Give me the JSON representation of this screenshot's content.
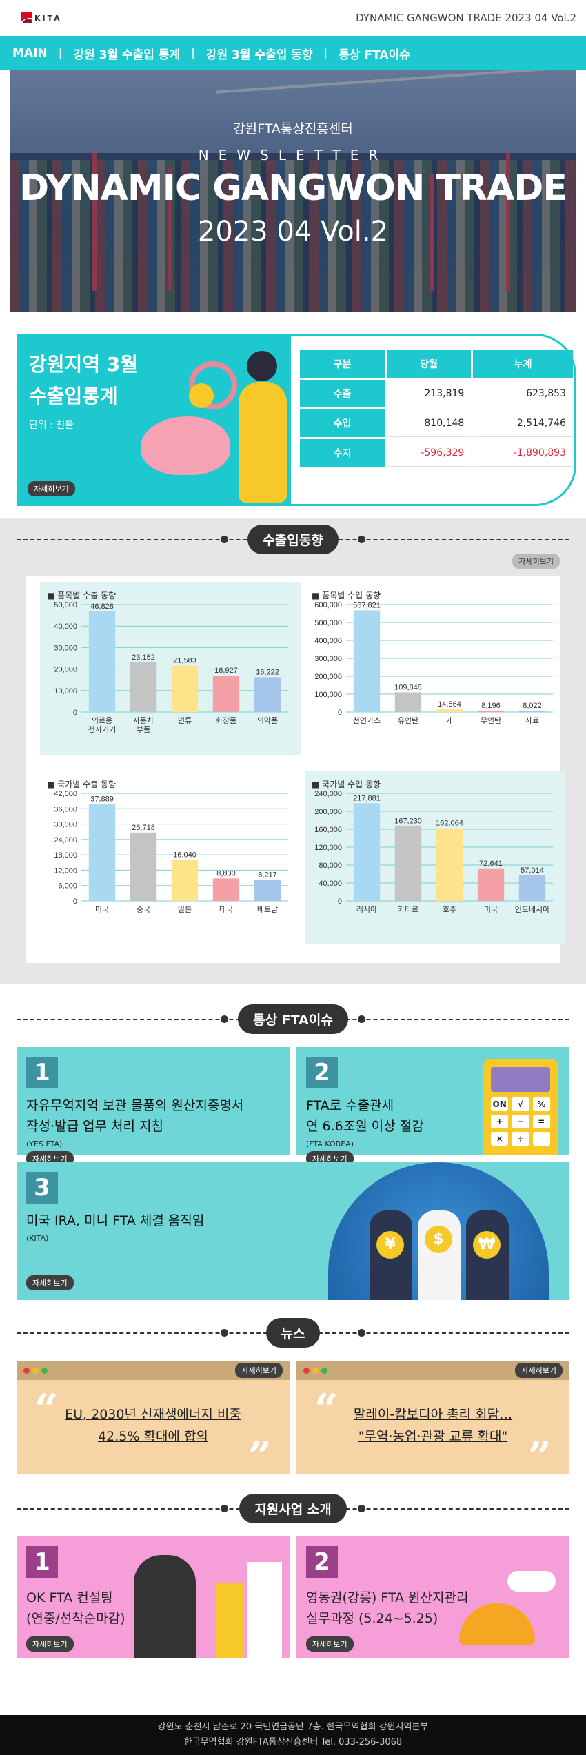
{
  "header": {
    "logo_text": "KITA",
    "title": "DYNAMIC GANGWON TRADE 2023 04 Vol.2"
  },
  "nav": {
    "items": [
      "MAIN",
      "강원 3월 수출입 통계",
      "강원 3월 수출입 동향",
      "통상 FTA이슈"
    ]
  },
  "hero": {
    "org": "강원FTA통상진흥센터",
    "newsletter": "NEWSLETTER",
    "title": "DYNAMIC GANGWON TRADE",
    "vol": "2023 04 Vol.2"
  },
  "stats": {
    "title_line1": "강원지역 3월",
    "title_line2": "수출입통계",
    "unit": "단위 : 천불",
    "more": "자세히보기",
    "headers": [
      "구분",
      "당월",
      "누계"
    ],
    "rows": [
      {
        "label": "수출",
        "month": "213,819",
        "total": "623,853"
      },
      {
        "label": "수입",
        "month": "810,148",
        "total": "2,514,746"
      },
      {
        "label": "수지",
        "month": "-596,329",
        "total": "-1,890,893"
      }
    ]
  },
  "sections": {
    "trend": "수출입동향",
    "fta": "통상 FTA이슈",
    "news": "뉴스",
    "support": "지원사업 소개",
    "more": "자세히보기"
  },
  "chart_data": [
    {
      "type": "bar",
      "title": "■ 품목별 수출 동향",
      "categories": [
        "의료용\n전자기기",
        "자동차\n부품",
        "면류",
        "화장품",
        "의약품"
      ],
      "values": [
        46828,
        23152,
        21583,
        16927,
        16222
      ],
      "labels": [
        "46,828",
        "23,152",
        "21,583",
        "16,927",
        "16,222"
      ],
      "ylim": [
        0,
        50000
      ],
      "ticks": [
        "0",
        "10,000",
        "20,000",
        "30,000",
        "40,000",
        "50,000"
      ],
      "colors": [
        "#a9d9f2",
        "#c4c4c4",
        "#fde38a",
        "#f4a0a6",
        "#a6c5ea"
      ]
    },
    {
      "type": "bar",
      "title": "■ 품목별 수입 동향",
      "categories": [
        "천연가스",
        "유연탄",
        "게",
        "무연탄",
        "사료"
      ],
      "values": [
        567821,
        109848,
        14564,
        8196,
        8022
      ],
      "labels": [
        "567,821",
        "109,848",
        "14,564",
        "8,196",
        "8,022"
      ],
      "ylim": [
        0,
        600000
      ],
      "ticks": [
        "0",
        "100,000",
        "200,000",
        "300,000",
        "400,000",
        "500,000",
        "600,000"
      ],
      "colors": [
        "#a9d9f2",
        "#c4c4c4",
        "#fde38a",
        "#f4a0a6",
        "#a6c5ea"
      ]
    },
    {
      "type": "bar",
      "title": "■ 국가별 수출 동향",
      "categories": [
        "미국",
        "중국",
        "일본",
        "태국",
        "베트남"
      ],
      "values": [
        37889,
        26718,
        16040,
        8800,
        8217
      ],
      "labels": [
        "37,889",
        "26,718",
        "16,040",
        "8,800",
        "8,217"
      ],
      "ylim": [
        0,
        42000
      ],
      "ticks": [
        "0",
        "6,000",
        "12,000",
        "18,000",
        "24,000",
        "30,000",
        "36,000",
        "42,000"
      ],
      "colors": [
        "#a9d9f2",
        "#c4c4c4",
        "#fde38a",
        "#f4a0a6",
        "#a6c5ea"
      ]
    },
    {
      "type": "bar",
      "title": "■ 국가별 수입 동향",
      "categories": [
        "러시아",
        "카타르",
        "호주",
        "미국",
        "인도네시아"
      ],
      "values": [
        217881,
        167230,
        162064,
        72641,
        57014
      ],
      "labels": [
        "217,881",
        "167,230",
        "162,064",
        "72,641",
        "57,014"
      ],
      "ylim": [
        0,
        240000
      ],
      "ticks": [
        "0",
        "40,000",
        "80,000",
        "120,000",
        "160,000",
        "200,000",
        "240,000"
      ],
      "colors": [
        "#a9d9f2",
        "#c4c4c4",
        "#fde38a",
        "#f4a0a6",
        "#a6c5ea"
      ]
    }
  ],
  "fta": [
    {
      "num": "1",
      "title_line1": "자유무역지역 보관 물품의 원산지증명서",
      "title_line2": "작성·발급 업무 처리 지침",
      "source": "(YES FTA)"
    },
    {
      "num": "2",
      "title_line1": "FTA로 수출관세",
      "title_line2": "연 6.6조원 이상 절감",
      "source": "(FTA KOREA)"
    },
    {
      "num": "3",
      "title_line1": "미국 IRA, 미니 FTA 체결 움직임",
      "title_line2": "",
      "source": "(KITA)"
    }
  ],
  "calc_keys": [
    "ON",
    "√",
    "%",
    "+",
    "−",
    "=",
    "×",
    "÷",
    ""
  ],
  "news": [
    {
      "line1": "EU, 2030년 신재생에너지 비중",
      "line2": "42.5% 확대에 합의"
    },
    {
      "line1": "말레이-캄보디아 총리 회담…",
      "line2": "\"무역·농업·관광 교류 확대\""
    }
  ],
  "support": [
    {
      "num": "1",
      "line1": "OK FTA 컨설팅",
      "line2": "(연중/선착순마감)"
    },
    {
      "num": "2",
      "line1": "영동권(강릉) FTA 원산지관리",
      "line2": "실무과정 (5.24~5.25)"
    }
  ],
  "footer": {
    "line1": "강원도 춘천시 남춘로 20 국민연금공단 7층. 한국무역협회 강원지역본부",
    "line2": "한국무역협회 강원FTA통상진흥센터  Tel. 033-256-3068"
  }
}
